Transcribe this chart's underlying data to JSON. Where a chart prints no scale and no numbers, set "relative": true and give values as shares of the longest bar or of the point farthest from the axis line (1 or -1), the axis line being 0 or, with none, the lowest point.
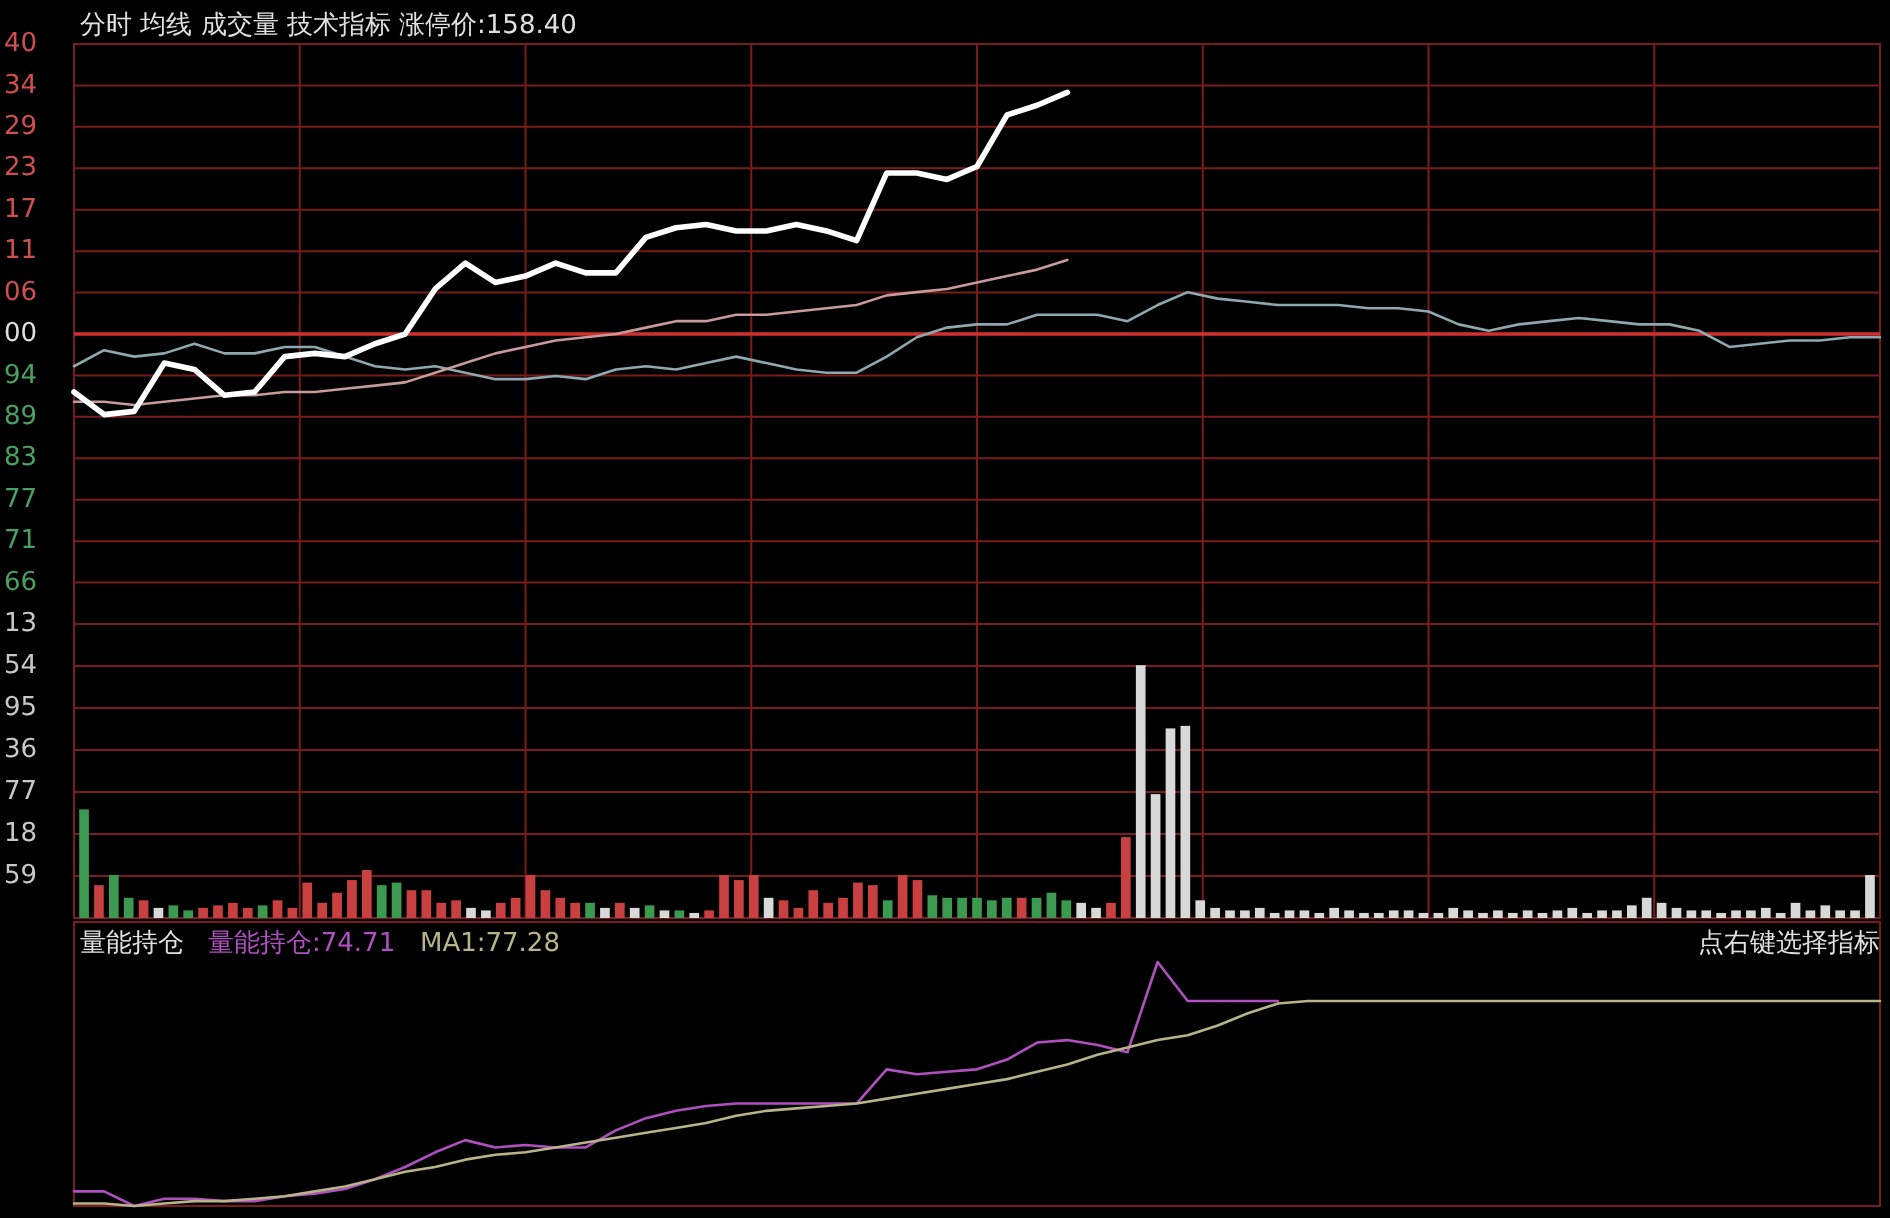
{
  "chart_data": [
    {
      "type": "line",
      "title": "分时 均线 成交量 技术指标 涨停价:158.40",
      "relative": true,
      "annotations": [
        "40",
        "34",
        "29",
        "23",
        "17",
        "11",
        "06",
        "00",
        "94",
        "89",
        "83",
        "77",
        "71",
        "66"
      ],
      "categories": [
        null,
        null,
        null,
        null,
        null,
        null,
        null,
        null,
        null,
        null,
        null,
        null,
        null,
        null,
        null,
        null,
        null,
        null,
        null,
        null,
        null,
        null,
        null,
        null,
        null,
        null,
        null,
        null,
        null,
        null,
        null,
        null,
        null,
        null,
        null,
        null,
        null,
        null,
        null,
        null,
        null,
        null,
        null,
        null,
        null,
        null,
        null,
        null,
        null,
        null,
        null,
        null,
        null,
        null,
        null,
        null,
        null,
        null,
        null,
        null,
        null
      ],
      "series": [
        {
          "color": "#8fa8b0",
          "values": [
            0.15,
            0.2,
            0.18,
            0.19,
            0.22,
            0.19,
            0.19,
            0.21,
            0.21,
            0.18,
            0.15,
            0.14,
            0.15,
            0.13,
            0.11,
            0.11,
            0.12,
            0.11,
            0.14,
            0.15,
            0.14,
            0.16,
            0.18,
            0.16,
            0.14,
            0.13,
            0.13,
            0.18,
            0.24,
            0.27,
            0.28,
            0.28,
            0.31,
            0.31,
            0.31,
            0.29,
            0.34,
            0.38,
            0.36,
            0.35,
            0.34,
            0.34,
            0.34,
            0.33,
            0.33,
            0.32,
            0.28,
            0.26,
            0.28,
            0.29,
            0.3,
            0.29,
            0.28,
            0.28,
            0.26,
            0.21,
            0.22,
            0.23,
            0.23,
            0.24,
            0.24
          ]
        },
        {
          "color": "#c89a9a",
          "values": [
            0.04,
            0.04,
            0.03,
            0.04,
            0.05,
            0.06,
            0.06,
            0.07,
            0.07,
            0.08,
            0.09,
            0.1,
            0.13,
            0.16,
            0.19,
            0.21,
            0.23,
            0.24,
            0.25,
            0.27,
            0.29,
            0.29,
            0.31,
            0.31,
            0.32,
            0.33,
            0.34,
            0.37,
            0.38,
            0.39,
            0.41,
            0.43,
            0.45,
            0.48,
            null,
            null,
            null,
            null,
            null,
            null,
            null,
            null,
            null,
            null,
            null,
            null,
            null,
            null,
            null,
            null,
            null,
            null,
            null,
            null,
            null,
            null,
            null,
            null,
            null,
            null,
            null
          ]
        },
        {
          "color": "#ffffff",
          "values": [
            0.07,
            0,
            0.01,
            0.16,
            0.14,
            0.06,
            0.07,
            0.18,
            0.19,
            0.18,
            0.22,
            0.25,
            0.39,
            0.47,
            0.41,
            0.43,
            0.47,
            0.44,
            0.44,
            0.55,
            0.58,
            0.59,
            0.57,
            0.57,
            0.59,
            0.57,
            0.54,
            0.75,
            0.75,
            0.73,
            0.77,
            0.93,
            0.96,
            1,
            null,
            null,
            null,
            null,
            null,
            null,
            null,
            null,
            null,
            null,
            null,
            null,
            null,
            null,
            null,
            null,
            null,
            null,
            null,
            null,
            null,
            null,
            null,
            null,
            null,
            null,
            null
          ]
        }
      ],
      "ref_lines": [
        {
          "axis": "y",
          "value": 0.25,
          "color": "#d03030"
        }
      ],
      "grid": true
    },
    {
      "type": "bar",
      "relative": true,
      "annotations": [
        "13",
        "54",
        "95",
        "36",
        "77",
        "18",
        "59"
      ],
      "categories": [
        null,
        null,
        null,
        null,
        null,
        null,
        null,
        null,
        null,
        null,
        null,
        null,
        null,
        null,
        null,
        null,
        null,
        null,
        null,
        null,
        null,
        null,
        null,
        null,
        null,
        null,
        null,
        null,
        null,
        null,
        null,
        null,
        null,
        null,
        null,
        null,
        null,
        null,
        null,
        null,
        null,
        null,
        null,
        null,
        null,
        null,
        null,
        null,
        null,
        null,
        null,
        null,
        null,
        null,
        null,
        null,
        null,
        null,
        null,
        null,
        null,
        null,
        null,
        null,
        null,
        null,
        null,
        null,
        null,
        null,
        null,
        null,
        null,
        null,
        null,
        null,
        null,
        null,
        null,
        null,
        null,
        null,
        null,
        null,
        null,
        null,
        null,
        null,
        null,
        null,
        null,
        null,
        null,
        null,
        null,
        null,
        null,
        null,
        null,
        null,
        null,
        null,
        null,
        null,
        null,
        null,
        null,
        null,
        null,
        null,
        null,
        null,
        null,
        null,
        null,
        null,
        null,
        null,
        null,
        null,
        null
      ],
      "values": [
        0.43,
        0.13,
        0.17,
        0.08,
        0.07,
        0.04,
        0.05,
        0.03,
        0.04,
        0.05,
        0.06,
        0.04,
        0.05,
        0.07,
        0.04,
        0.14,
        0.06,
        0.1,
        0.15,
        0.19,
        0.13,
        0.14,
        0.11,
        0.11,
        0.06,
        0.07,
        0.04,
        0.03,
        0.06,
        0.08,
        0.17,
        0.11,
        0.08,
        0.06,
        0.06,
        0.04,
        0.06,
        0.04,
        0.05,
        0.03,
        0.03,
        0.02,
        0.03,
        0.17,
        0.15,
        0.17,
        0.08,
        0.07,
        0.04,
        0.11,
        0.06,
        0.08,
        0.14,
        0.13,
        0.07,
        0.17,
        0.15,
        0.09,
        0.08,
        0.08,
        0.08,
        0.07,
        0.08,
        0.08,
        0.08,
        0.1,
        0.07,
        0.06,
        0.04,
        0.06,
        0.32,
        1,
        0.49,
        0.75,
        0.76,
        0.07,
        0.04,
        0.03,
        0.03,
        0.04,
        0.02,
        0.03,
        0.03,
        0.02,
        0.04,
        0.03,
        0.02,
        0.02,
        0.03,
        0.03,
        0.02,
        0.02,
        0.04,
        0.03,
        0.02,
        0.03,
        0.02,
        0.03,
        0.02,
        0.03,
        0.04,
        0.02,
        0.03,
        0.03,
        0.05,
        0.08,
        0.06,
        0.04,
        0.03,
        0.03,
        0.02,
        0.03,
        0.03,
        0.04,
        0.02,
        0.06,
        0.03,
        0.05,
        0.03,
        0.03,
        0.17
      ],
      "colors": [
        "#3c9a50",
        "#c84040",
        "#3c9a50",
        "#3c9a50",
        "#c84040",
        "#d8d8d8",
        "#3c9a50",
        "#3c9a50",
        "#c84040",
        "#c84040",
        "#c84040",
        "#c84040",
        "#3c9a50",
        "#c84040",
        "#c84040",
        "#c84040",
        "#c84040",
        "#c84040",
        "#c84040",
        "#c84040",
        "#3c9a50",
        "#3c9a50",
        "#c84040",
        "#c84040",
        "#c84040",
        "#c84040",
        "#d8d8d8",
        "#d8d8d8",
        "#c84040",
        "#c84040",
        "#c84040",
        "#c84040",
        "#c84040",
        "#c84040",
        "#3c9a50",
        "#d8d8d8",
        "#c84040",
        "#d8d8d8",
        "#3c9a50",
        "#d8d8d8",
        "#3c9a50",
        "#d8d8d8",
        "#c84040",
        "#c84040",
        "#c84040",
        "#c84040",
        "#d8d8d8",
        "#c84040",
        "#c84040",
        "#c84040",
        "#c84040",
        "#c84040",
        "#c84040",
        "#c84040",
        "#3c9a50",
        "#c84040",
        "#c84040",
        "#3c9a50",
        "#3c9a50",
        "#3c9a50",
        "#3c9a50",
        "#3c9a50",
        "#3c9a50",
        "#c84040",
        "#3c9a50",
        "#3c9a50",
        "#3c9a50",
        "#d8d8d8",
        "#d8d8d8",
        "#c84040",
        "#c84040",
        "#d8d8d8",
        "#d8d8d8",
        "#d8d8d8",
        "#d8d8d8",
        "#d8d8d8",
        "#d8d8d8",
        "#d8d8d8",
        "#d8d8d8",
        "#d8d8d8",
        "#d8d8d8",
        "#d8d8d8",
        "#d8d8d8",
        "#d8d8d8",
        "#d8d8d8",
        "#d8d8d8",
        "#d8d8d8",
        "#d8d8d8",
        "#d8d8d8",
        "#d8d8d8",
        "#d8d8d8",
        "#d8d8d8",
        "#d8d8d8",
        "#d8d8d8",
        "#d8d8d8",
        "#d8d8d8",
        "#d8d8d8",
        "#d8d8d8",
        "#d8d8d8",
        "#d8d8d8",
        "#d8d8d8",
        "#d8d8d8",
        "#d8d8d8",
        "#d8d8d8",
        "#d8d8d8",
        "#d8d8d8",
        "#d8d8d8",
        "#d8d8d8",
        "#d8d8d8",
        "#d8d8d8",
        "#d8d8d8",
        "#d8d8d8",
        "#d8d8d8",
        "#d8d8d8",
        "#d8d8d8",
        "#d8d8d8",
        "#d8d8d8",
        "#d8d8d8",
        "#d8d8d8",
        "#d8d8d8",
        "#d8d8d8"
      ],
      "grid": true
    },
    {
      "type": "line",
      "title": "量能持仓",
      "relative": true,
      "annotations": [
        "点右键选择指标"
      ],
      "categories": [
        null,
        null,
        null,
        null,
        null,
        null,
        null,
        null,
        null,
        null,
        null,
        null,
        null,
        null,
        null,
        null,
        null,
        null,
        null,
        null,
        null,
        null,
        null,
        null,
        null,
        null,
        null,
        null,
        null,
        null,
        null,
        null,
        null,
        null,
        null,
        null,
        null,
        null,
        null,
        null,
        null,
        null,
        null,
        null,
        null,
        null,
        null,
        null,
        null,
        null,
        null,
        null,
        null,
        null,
        null,
        null,
        null,
        null,
        null,
        null,
        null
      ],
      "series": [
        {
          "name": "量能持仓:74.71",
          "color": "#b050c0",
          "values": [
            0.06,
            0.06,
            0,
            0.03,
            0.03,
            0.02,
            0.02,
            0.04,
            0.05,
            0.07,
            0.11,
            0.16,
            0.22,
            0.27,
            0.24,
            0.25,
            0.24,
            0.24,
            0.31,
            0.36,
            0.39,
            0.41,
            0.42,
            0.42,
            0.42,
            0.42,
            0.42,
            0.56,
            0.54,
            0.55,
            0.56,
            0.6,
            0.67,
            0.68,
            0.66,
            0.63,
            1,
            0.84,
            0.84,
            0.84,
            0.84,
            null,
            null,
            null,
            null,
            null,
            null,
            null,
            null,
            null,
            null,
            null,
            null,
            null,
            null,
            null,
            null,
            null,
            null,
            null,
            null
          ]
        },
        {
          "name": "MA1:77.28",
          "color": "#b8b48a",
          "values": [
            0.01,
            0.01,
            0,
            0.01,
            0.02,
            0.02,
            0.03,
            0.04,
            0.06,
            0.08,
            0.11,
            0.14,
            0.16,
            0.19,
            0.21,
            0.22,
            0.24,
            0.26,
            0.28,
            0.3,
            0.32,
            0.34,
            0.37,
            0.39,
            0.4,
            0.41,
            0.42,
            0.44,
            0.46,
            0.48,
            0.5,
            0.52,
            0.55,
            0.58,
            0.62,
            0.65,
            0.68,
            0.7,
            0.74,
            0.79,
            0.83,
            0.84,
            0.84,
            0.84,
            0.84,
            0.84,
            0.84,
            0.84,
            0.84,
            0.84,
            0.84,
            0.84,
            0.84,
            0.84,
            0.84,
            0.84,
            0.84,
            0.84,
            0.84,
            0.84,
            0.84
          ]
        }
      ]
    }
  ]
}
